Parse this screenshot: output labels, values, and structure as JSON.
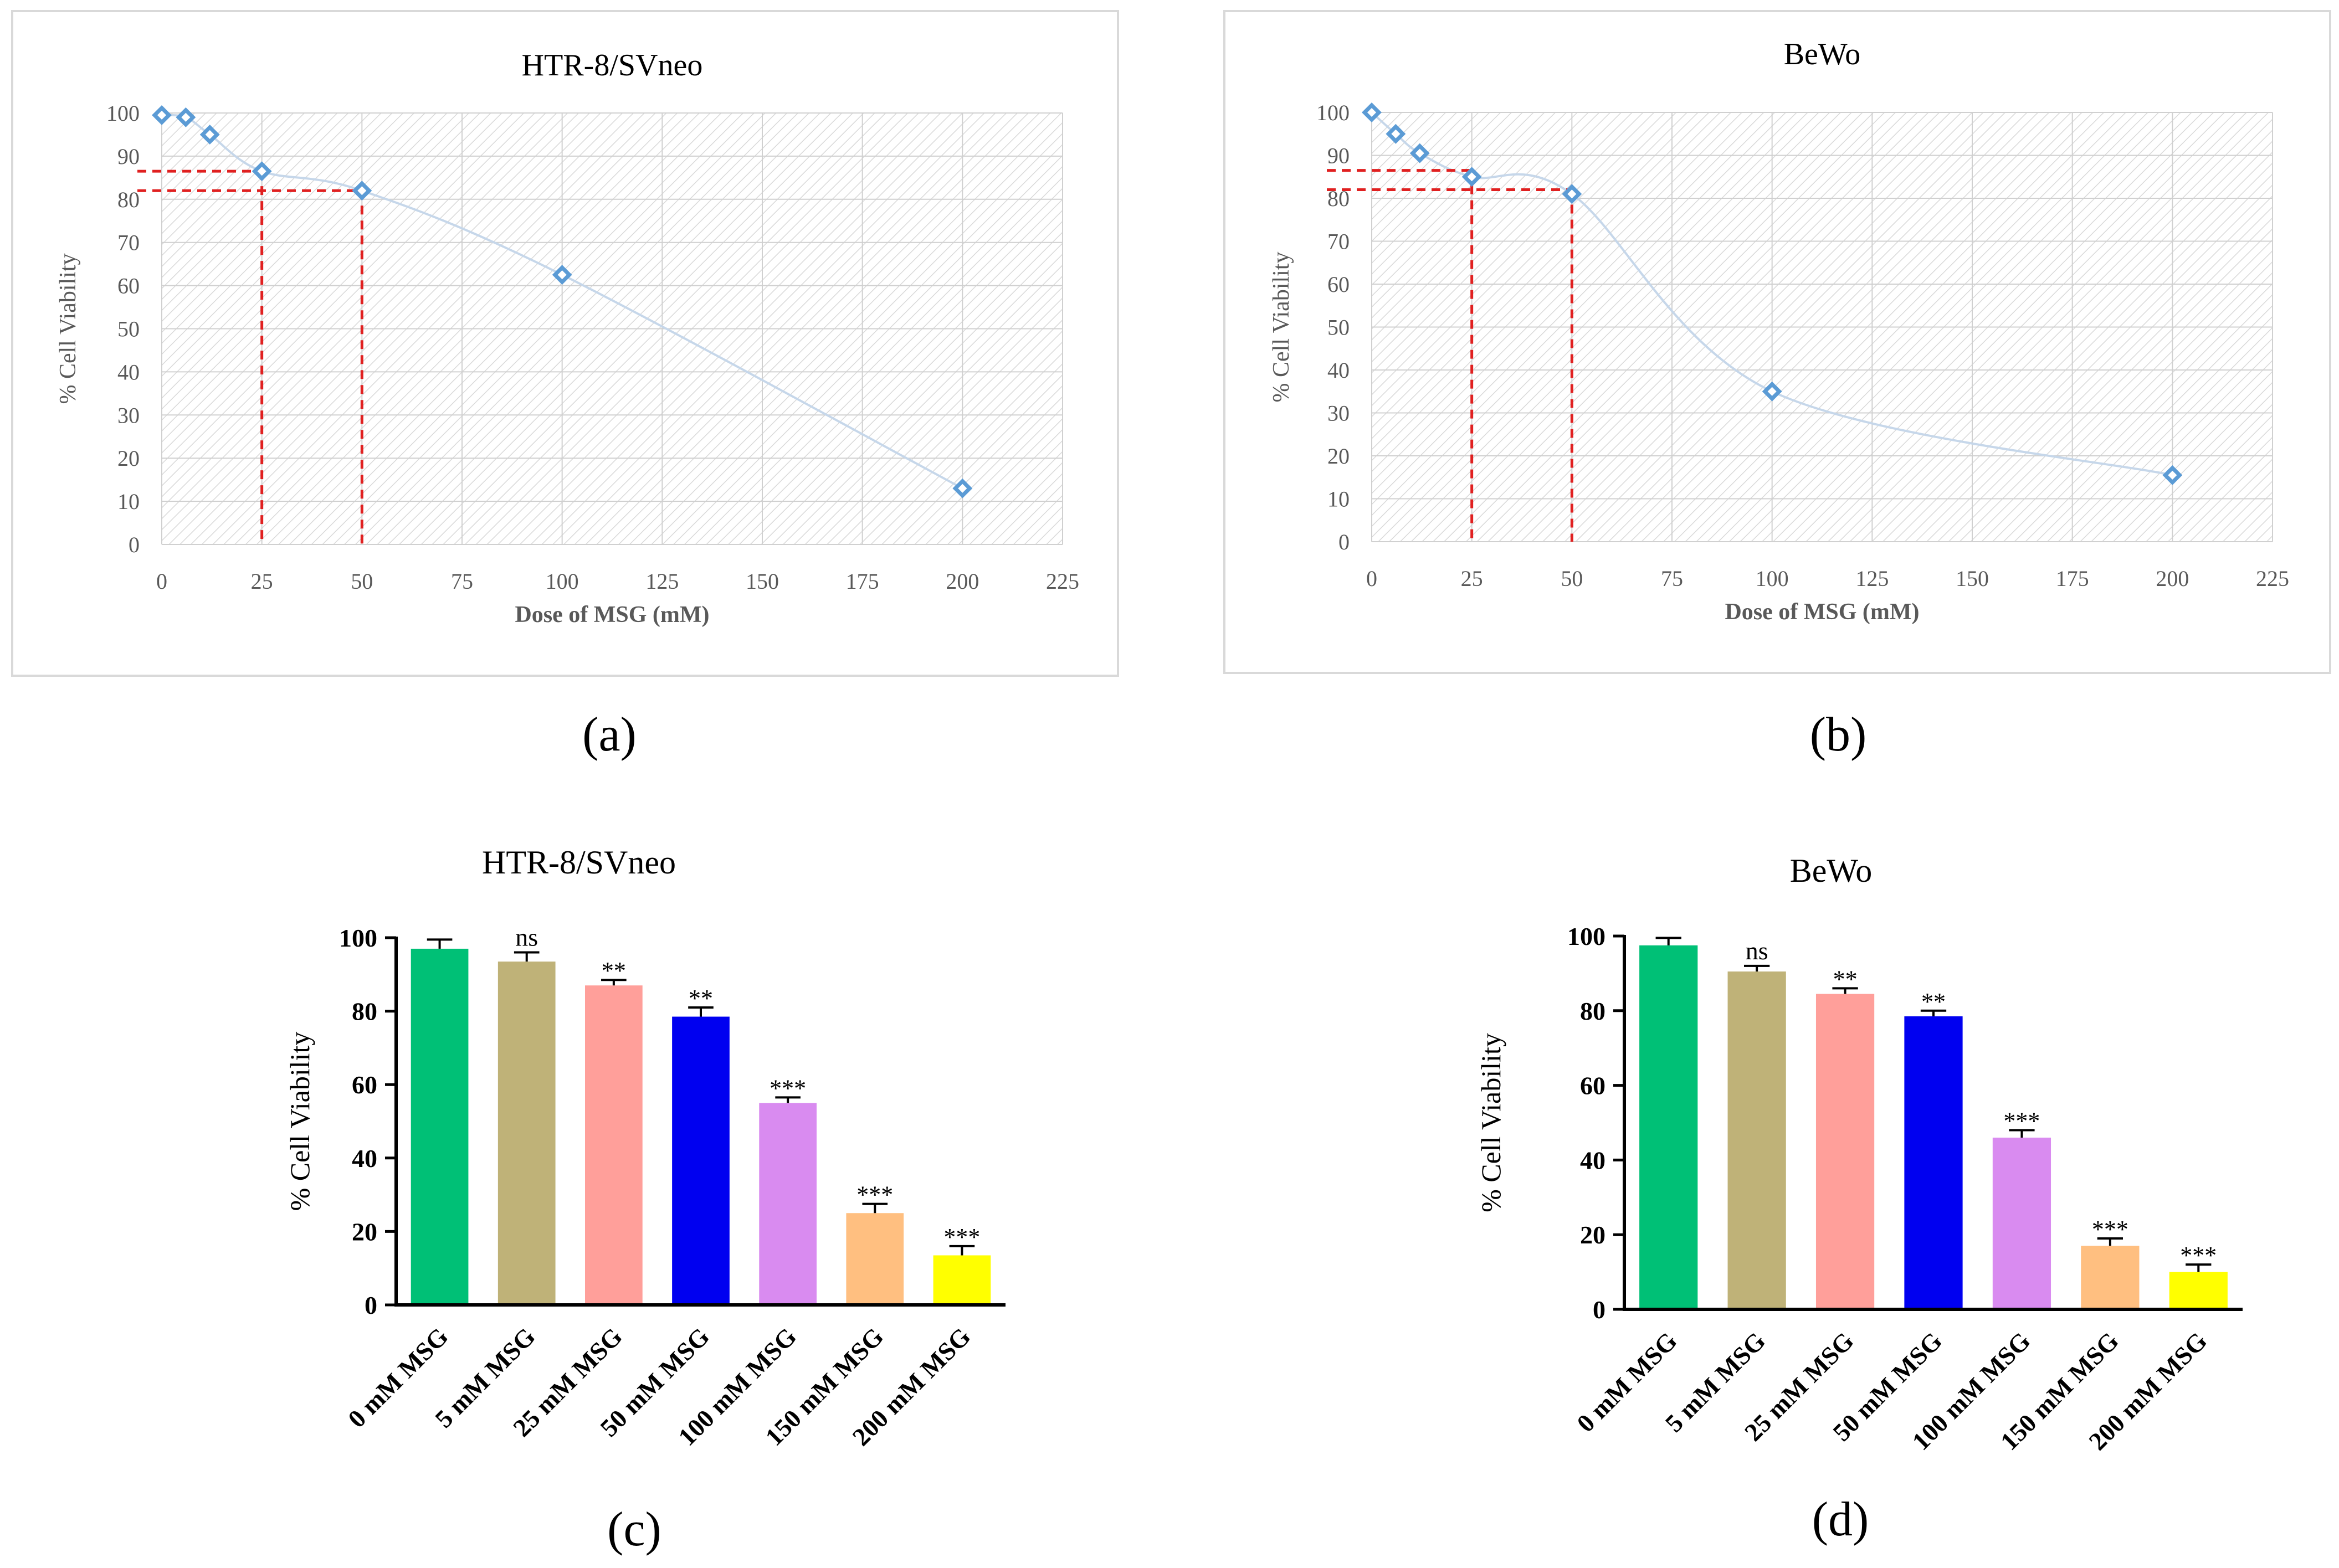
{
  "panel_labels": [
    "(a)",
    "(b)",
    "(c)",
    "(d)"
  ],
  "chart_data": [
    {
      "type": "scatter",
      "title": "HTR-8/SVneo",
      "xlabel": "Dose of MSG (mM)",
      "ylabel": "% Cell Viability",
      "xlim": [
        0,
        225
      ],
      "ylim": [
        0,
        100
      ],
      "xticks": [
        0,
        25,
        50,
        75,
        100,
        125,
        150,
        175,
        200,
        225
      ],
      "yticks": [
        0,
        10,
        20,
        30,
        40,
        50,
        60,
        70,
        80,
        90,
        100
      ],
      "x": [
        0,
        6,
        12,
        25,
        50,
        100,
        200
      ],
      "y": [
        99.5,
        99,
        95,
        86.5,
        82,
        62.5,
        13
      ],
      "reference_lines": [
        {
          "x": 25,
          "y": 86.5
        },
        {
          "x": 50,
          "y": 82
        }
      ],
      "marker_color": "#5b9bd5",
      "line_color": "#c6d7ea",
      "reference_color": "#e02020"
    },
    {
      "type": "scatter",
      "title": "BeWo",
      "xlabel": "Dose of MSG (mM)",
      "ylabel": "% Cell Viability",
      "xlim": [
        0,
        225
      ],
      "ylim": [
        0,
        100
      ],
      "xticks": [
        0,
        25,
        50,
        75,
        100,
        125,
        150,
        175,
        200,
        225
      ],
      "yticks": [
        0,
        10,
        20,
        30,
        40,
        50,
        60,
        70,
        80,
        90,
        100
      ],
      "x": [
        0,
        6,
        12,
        25,
        50,
        100,
        200
      ],
      "y": [
        100,
        95,
        90.5,
        85,
        81,
        35,
        15.5
      ],
      "reference_lines": [
        {
          "x": 25,
          "y": 86.5
        },
        {
          "x": 50,
          "y": 82
        }
      ],
      "marker_color": "#5b9bd5",
      "line_color": "#c6d7ea",
      "reference_color": "#e02020"
    },
    {
      "type": "bar",
      "title": "HTR-8/SVneo",
      "ylabel": "% Cell Viability",
      "ylim": [
        0,
        100
      ],
      "yticks": [
        0,
        20,
        40,
        60,
        80,
        100
      ],
      "categories": [
        "0 mM MSG",
        "5 mM MSG",
        "25 mM MSG",
        "50 mM MSG",
        "100 mM MSG",
        "150 mM MSG",
        "200 mM MSG"
      ],
      "values": [
        97,
        93.5,
        87,
        78.5,
        55,
        25,
        13.5
      ],
      "errors": [
        2.5,
        2.5,
        1.5,
        2.5,
        1.5,
        2.5,
        2.5
      ],
      "annotations": [
        "",
        "ns",
        "**",
        "**",
        "***",
        "***",
        "***"
      ],
      "colors": [
        "#00c076",
        "#bfb278",
        "#ff9f9a",
        "#0000f0",
        "#d98bf0",
        "#ffbf80",
        "#ffff00"
      ]
    },
    {
      "type": "bar",
      "title": "BeWo",
      "ylabel": "% Cell Viability",
      "ylim": [
        0,
        100
      ],
      "yticks": [
        0,
        20,
        40,
        60,
        80,
        100
      ],
      "categories": [
        "0 mM MSG",
        "5 mM MSG",
        "25 mM MSG",
        "50 mM MSG",
        "100 mM MSG",
        "150 mM MSG",
        "200 mM MSG"
      ],
      "values": [
        97.5,
        90.5,
        84.5,
        78.5,
        46,
        17,
        10
      ],
      "errors": [
        2,
        1.5,
        1.5,
        1.5,
        2,
        2,
        2
      ],
      "annotations": [
        "",
        "ns",
        "**",
        "**",
        "***",
        "***",
        "***"
      ],
      "colors": [
        "#00c076",
        "#bfb278",
        "#ff9f9a",
        "#0000f0",
        "#d98bf0",
        "#ffbf80",
        "#ffff00"
      ]
    }
  ]
}
